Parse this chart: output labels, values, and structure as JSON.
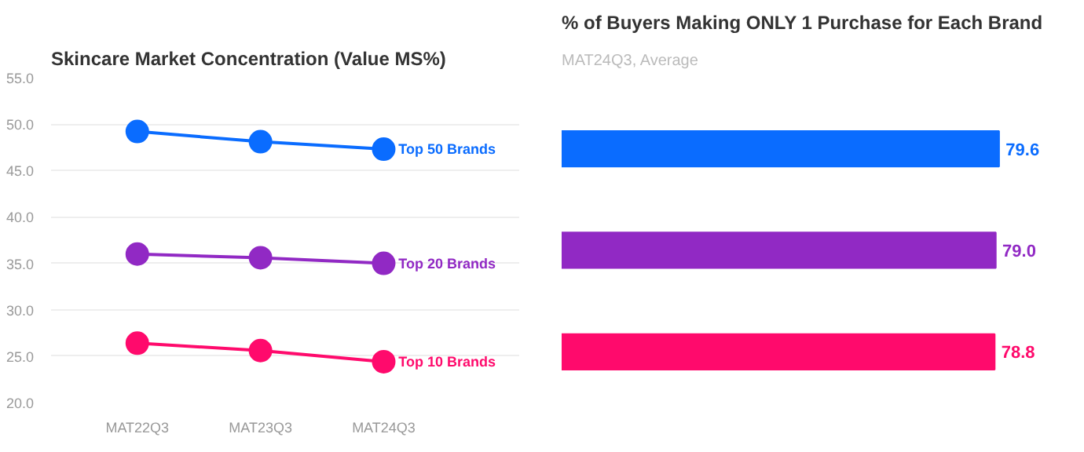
{
  "chart_data": [
    {
      "type": "line",
      "title": "Skincare Market Concentration (Value MS%)",
      "categories": [
        "MAT22Q3",
        "MAT23Q3",
        "MAT24Q3"
      ],
      "series": [
        {
          "name": "Top 50 Brands",
          "color": "#0a6cff",
          "values": [
            49.2,
            48.1,
            47.3
          ]
        },
        {
          "name": "Top 20 Brands",
          "color": "#9129c4",
          "values": [
            36.0,
            35.6,
            35.0
          ]
        },
        {
          "name": "Top 10 Brands",
          "color": "#ff0a6c",
          "values": [
            26.4,
            25.6,
            24.4
          ]
        }
      ],
      "ylim": [
        20,
        55
      ],
      "yticks": [
        {
          "value": 20,
          "label": "20.0"
        },
        {
          "value": 25,
          "label": "25.0"
        },
        {
          "value": 30,
          "label": "30.0"
        },
        {
          "value": 35,
          "label": "35.0"
        },
        {
          "value": 40,
          "label": "40.0"
        },
        {
          "value": 45,
          "label": "45.0"
        },
        {
          "value": 50,
          "label": "50.0"
        },
        {
          "value": 55,
          "label": "55.0"
        }
      ],
      "grid": "y",
      "marker": "circle",
      "legend": false
    },
    {
      "type": "bar",
      "orientation": "horizontal",
      "title": "% of Buyers Making ONLY 1 Purchase for Each Brand",
      "subtitle": "MAT24Q3, Average",
      "categories": [
        null,
        null,
        null
      ],
      "series": [
        {
          "type": "bar",
          "colors": [
            "#0a6cff",
            "#9129c4",
            "#ff0a6c"
          ],
          "values": [
            79.6,
            79.0,
            78.8
          ],
          "value_labels": [
            "79.6",
            "79.0",
            "78.8"
          ]
        }
      ]
    }
  ]
}
